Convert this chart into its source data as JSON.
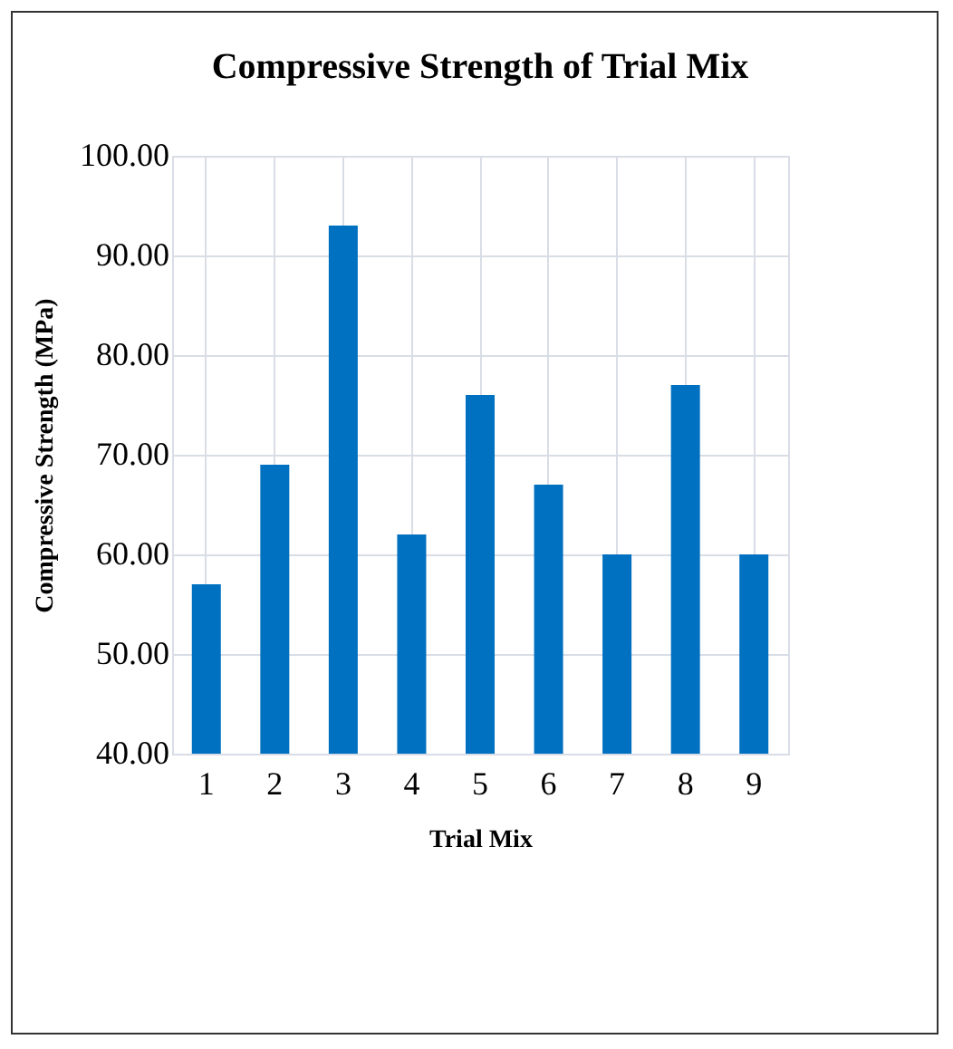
{
  "chart_data": {
    "type": "bar",
    "title": "Compressive Strength of Trial Mix",
    "xlabel": "Trial Mix",
    "ylabel": "Compressive Strength (MPa)",
    "categories": [
      "1",
      "2",
      "3",
      "4",
      "5",
      "6",
      "7",
      "8",
      "9"
    ],
    "values": [
      57,
      69,
      93,
      62,
      76,
      67,
      60,
      77,
      60
    ],
    "color": "#0070c0",
    "ylim": [
      40,
      100
    ],
    "yticks": [
      {
        "value": 40,
        "label": "40.00"
      },
      {
        "value": 50,
        "label": "50.00"
      },
      {
        "value": 60,
        "label": "60.00"
      },
      {
        "value": 70,
        "label": "70.00"
      },
      {
        "value": 80,
        "label": "80.00"
      },
      {
        "value": 90,
        "label": "90.00"
      },
      {
        "value": 100,
        "label": "100.00"
      }
    ],
    "grid": true
  }
}
